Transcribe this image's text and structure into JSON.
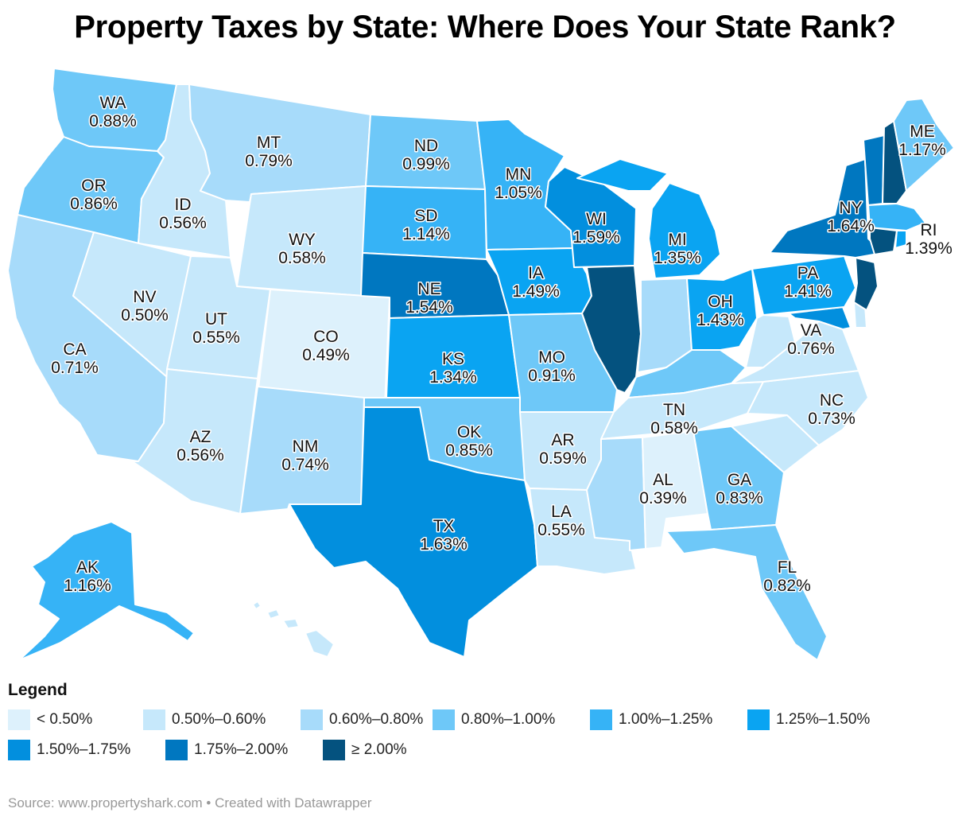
{
  "title": "Property Taxes by State: Where Does Your State Rank?",
  "legend": {
    "title": "Legend",
    "items": [
      {
        "label": "< 0.50%",
        "color": "#ddf1fc"
      },
      {
        "label": "0.50%–0.60%",
        "color": "#c6e8fb"
      },
      {
        "label": "0.60%–0.80%",
        "color": "#a7dbfa"
      },
      {
        "label": "0.80%–1.00%",
        "color": "#6ec8f8"
      },
      {
        "label": "1.00%–1.25%",
        "color": "#36b3f6"
      },
      {
        "label": "1.25%–1.50%",
        "color": "#0aa4f2"
      },
      {
        "label": "1.50%–1.75%",
        "color": "#028fde"
      },
      {
        "label": "1.75%–2.00%",
        "color": "#0077c0"
      },
      {
        "label": "≥ 2.00%",
        "color": "#04527f"
      }
    ]
  },
  "states": [
    {
      "abbr": "WA",
      "rate": "0.88%"
    },
    {
      "abbr": "OR",
      "rate": "0.86%"
    },
    {
      "abbr": "CA",
      "rate": "0.71%"
    },
    {
      "abbr": "ID",
      "rate": "0.56%"
    },
    {
      "abbr": "NV",
      "rate": "0.50%"
    },
    {
      "abbr": "MT",
      "rate": "0.79%"
    },
    {
      "abbr": "WY",
      "rate": "0.58%"
    },
    {
      "abbr": "UT",
      "rate": "0.55%"
    },
    {
      "abbr": "CO",
      "rate": "0.49%"
    },
    {
      "abbr": "AZ",
      "rate": "0.56%"
    },
    {
      "abbr": "NM",
      "rate": "0.74%"
    },
    {
      "abbr": "ND",
      "rate": "0.99%"
    },
    {
      "abbr": "SD",
      "rate": "1.14%"
    },
    {
      "abbr": "NE",
      "rate": "1.54%"
    },
    {
      "abbr": "KS",
      "rate": "1.34%"
    },
    {
      "abbr": "OK",
      "rate": "0.85%"
    },
    {
      "abbr": "TX",
      "rate": "1.63%"
    },
    {
      "abbr": "MN",
      "rate": "1.05%"
    },
    {
      "abbr": "IA",
      "rate": "1.49%"
    },
    {
      "abbr": "MO",
      "rate": "0.91%"
    },
    {
      "abbr": "AR",
      "rate": "0.59%"
    },
    {
      "abbr": "LA",
      "rate": "0.55%"
    },
    {
      "abbr": "WI",
      "rate": "1.59%"
    },
    {
      "abbr": "MI",
      "rate": "1.35%"
    },
    {
      "abbr": "OH",
      "rate": "1.43%"
    },
    {
      "abbr": "TN",
      "rate": "0.58%"
    },
    {
      "abbr": "AL",
      "rate": "0.39%"
    },
    {
      "abbr": "GA",
      "rate": "0.83%"
    },
    {
      "abbr": "FL",
      "rate": "0.82%"
    },
    {
      "abbr": "NC",
      "rate": "0.73%"
    },
    {
      "abbr": "VA",
      "rate": "0.76%"
    },
    {
      "abbr": "PA",
      "rate": "1.41%"
    },
    {
      "abbr": "NY",
      "rate": "1.64%"
    },
    {
      "abbr": "ME",
      "rate": "1.17%"
    },
    {
      "abbr": "RI",
      "rate": "1.39%"
    },
    {
      "abbr": "AK",
      "rate": "1.16%"
    }
  ],
  "source": "Source: www.propertyshark.com • Created with Datawrapper"
}
